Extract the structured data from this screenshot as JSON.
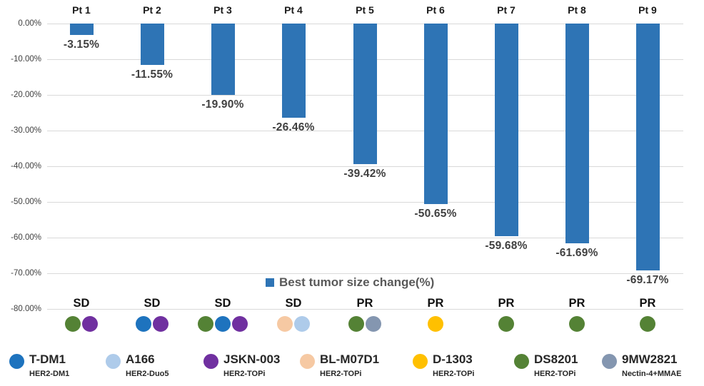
{
  "chart_data": {
    "type": "bar",
    "series_label": "Best tumor size change(%)",
    "categories": [
      "Pt 1",
      "Pt 2",
      "Pt 3",
      "Pt 4",
      "Pt 5",
      "Pt 6",
      "Pt 7",
      "Pt 8",
      "Pt 9"
    ],
    "values": [
      -3.15,
      -11.55,
      -19.9,
      -26.46,
      -39.42,
      -50.65,
      -59.68,
      -61.69,
      -69.17
    ],
    "value_labels": [
      "-3.15%",
      "-11.55%",
      "-19.90%",
      "-26.46%",
      "-39.42%",
      "-50.65%",
      "-59.68%",
      "-61.69%",
      "-69.17%"
    ],
    "responses": [
      "SD",
      "SD",
      "SD",
      "SD",
      "PR",
      "PR",
      "PR",
      "PR",
      "PR"
    ],
    "prior_treatments": [
      [
        "DS8201",
        "JSKN-003"
      ],
      [
        "T-DM1",
        "JSKN-003"
      ],
      [
        "DS8201",
        "T-DM1",
        "JSKN-003"
      ],
      [
        "BL-M07D1",
        "A166"
      ],
      [
        "DS8201",
        "9MW2821"
      ],
      [
        "D-1303"
      ],
      [
        "DS8201"
      ],
      [
        "DS8201"
      ],
      [
        "DS8201"
      ]
    ],
    "y_ticks": [
      "0.00%",
      "-10.00%",
      "-20.00%",
      "-30.00%",
      "-40.00%",
      "-50.00%",
      "-60.00%",
      "-70.00%",
      "-80.00%"
    ],
    "ylim": [
      -80,
      0
    ],
    "bar_color": "#2e74b5",
    "grid": true,
    "legend_position": "bottom"
  },
  "drug_legend": [
    {
      "name": "T-DM1",
      "mechanism": "HER2-DM1",
      "color": "#1e73be"
    },
    {
      "name": "A166",
      "mechanism": "HER2-Duo5",
      "color": "#aecbea"
    },
    {
      "name": "JSKN-003",
      "mechanism": "HER2-TOPi",
      "color": "#7030a0"
    },
    {
      "name": "BL-M07D1",
      "mechanism": "HER2-TOPi",
      "color": "#f6c9a3"
    },
    {
      "name": "D-1303",
      "mechanism": "HER2-TOPi",
      "color": "#ffc000"
    },
    {
      "name": "DS8201",
      "mechanism": "HER2-TOPi",
      "color": "#548235"
    },
    {
      "name": "9MW2821",
      "mechanism": "Nectin-4+MMAE",
      "color": "#8496b0"
    }
  ]
}
